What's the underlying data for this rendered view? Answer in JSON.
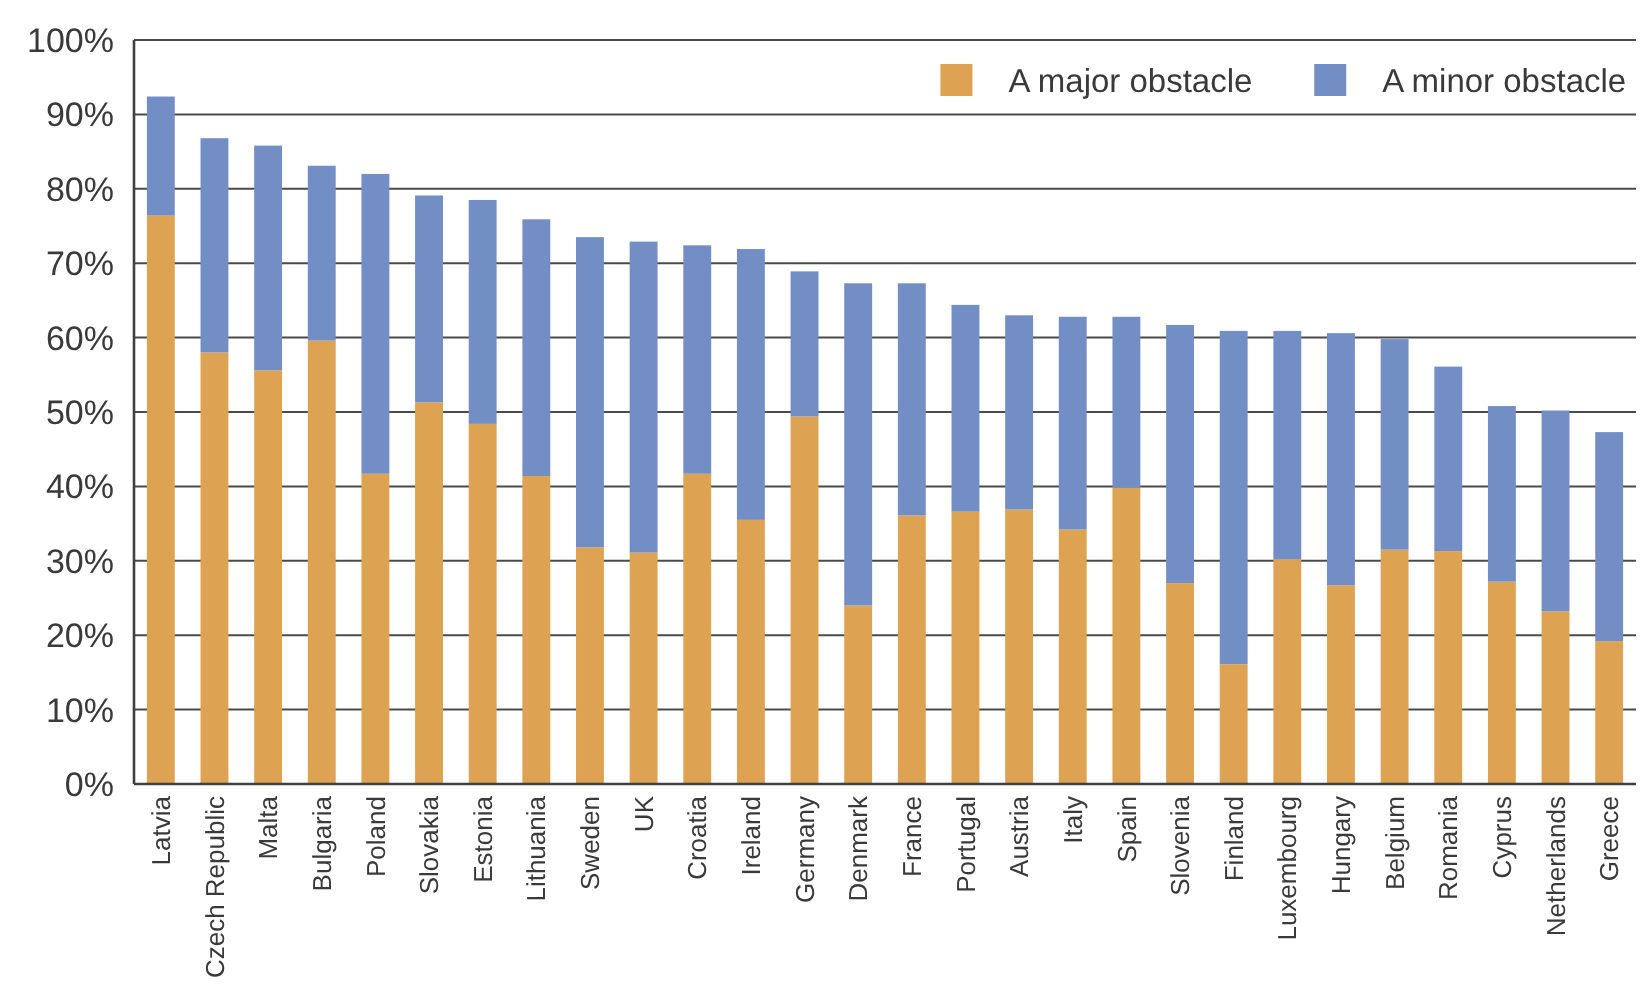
{
  "chart_data": {
    "type": "bar",
    "stacked": true,
    "categories": [
      "Latvia",
      "Czech Republic",
      "Malta",
      "Bulgaria",
      "Poland",
      "Slovakia",
      "Estonia",
      "Lithuania",
      "Sweden",
      "UK",
      "Croatia",
      "Ireland",
      "Germany",
      "Denmark",
      "France",
      "Portugal",
      "Austria",
      "Italy",
      "Spain",
      "Slovenia",
      "Finland",
      "Luxembourg",
      "Hungary",
      "Belgium",
      "Romania",
      "Cyprus",
      "Netherlands",
      "Greece"
    ],
    "series": [
      {
        "name": "A major obstacle",
        "color": "#dea352",
        "values": [
          76.4,
          58.0,
          55.6,
          59.6,
          41.7,
          51.3,
          48.4,
          41.4,
          31.8,
          31.1,
          41.7,
          35.5,
          49.4,
          24.0,
          36.1,
          36.6,
          36.9,
          34.2,
          39.8,
          27.0,
          16.1,
          30.2,
          26.7,
          31.5,
          31.3,
          27.2,
          23.2,
          19.2
        ]
      },
      {
        "name": "A minor obstacle",
        "color": "#738ec4",
        "values": [
          16.0,
          28.8,
          30.2,
          23.5,
          40.3,
          27.8,
          30.1,
          34.5,
          41.7,
          41.8,
          30.7,
          36.4,
          19.5,
          43.3,
          31.2,
          27.8,
          26.1,
          28.6,
          23.0,
          34.7,
          44.8,
          30.7,
          33.9,
          28.3,
          24.8,
          23.6,
          27.0,
          28.1
        ]
      }
    ],
    "ylim": [
      0,
      100
    ],
    "yticks": [
      {
        "value": 0,
        "label": "0%"
      },
      {
        "value": 10,
        "label": "10%"
      },
      {
        "value": 20,
        "label": "20%"
      },
      {
        "value": 30,
        "label": "30%"
      },
      {
        "value": 40,
        "label": "40%"
      },
      {
        "value": 50,
        "label": "50%"
      },
      {
        "value": 60,
        "label": "60%"
      },
      {
        "value": 70,
        "label": "70%"
      },
      {
        "value": 80,
        "label": "80%"
      },
      {
        "value": 90,
        "label": "90%"
      },
      {
        "value": 100,
        "label": "100%"
      }
    ],
    "grid": "y",
    "legend": "top right"
  }
}
